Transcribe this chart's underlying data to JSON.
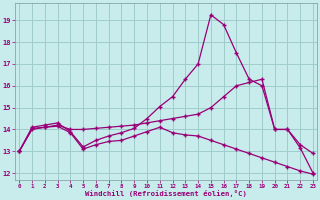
{
  "xlabel": "Windchill (Refroidissement éolien,°C)",
  "bg_color": "#c8ecec",
  "grid_color": "#a0cccc",
  "line_color": "#990077",
  "xticks": [
    0,
    1,
    2,
    3,
    4,
    5,
    6,
    7,
    8,
    9,
    10,
    11,
    12,
    13,
    14,
    15,
    16,
    17,
    18,
    19,
    20,
    21,
    22,
    23
  ],
  "yticks": [
    12,
    13,
    14,
    15,
    16,
    17,
    18,
    19
  ],
  "xlim": [
    -0.3,
    23.3
  ],
  "ylim": [
    11.7,
    19.8
  ],
  "line1_y": [
    13.0,
    14.1,
    14.2,
    14.3,
    13.9,
    13.2,
    13.5,
    13.7,
    13.85,
    14.05,
    14.5,
    15.05,
    15.5,
    16.3,
    17.0,
    19.25,
    18.8,
    17.5,
    16.3,
    16.0,
    14.0,
    14.0,
    13.3,
    12.9
  ],
  "line2_y": [
    13.0,
    14.0,
    14.1,
    14.2,
    14.0,
    14.0,
    14.05,
    14.1,
    14.15,
    14.2,
    14.3,
    14.4,
    14.5,
    14.6,
    14.7,
    15.0,
    15.5,
    16.0,
    16.15,
    16.3,
    14.0,
    14.0,
    13.15,
    12.0
  ],
  "line3_y": [
    13.0,
    14.05,
    14.1,
    14.15,
    13.85,
    13.1,
    13.3,
    13.45,
    13.5,
    13.7,
    13.9,
    14.1,
    13.85,
    13.75,
    13.7,
    13.5,
    13.3,
    13.1,
    12.9,
    12.7,
    12.5,
    12.3,
    12.1,
    11.95
  ]
}
